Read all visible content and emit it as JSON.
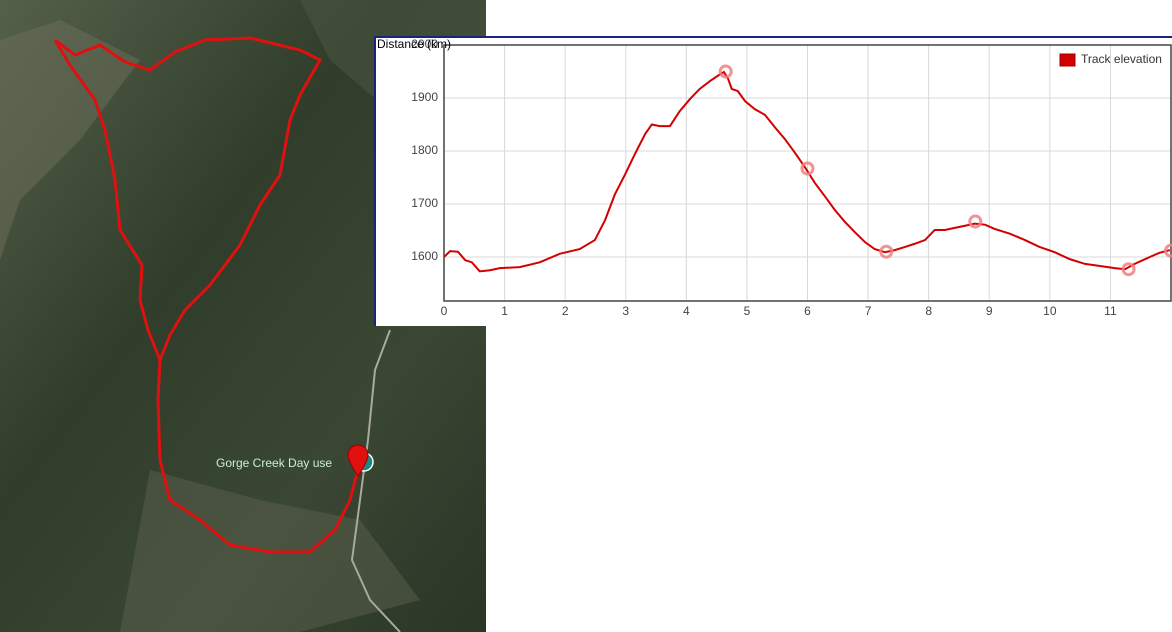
{
  "map": {
    "label": "Gorge Creek Day use"
  },
  "chart_data": {
    "type": "line",
    "title": "Distance (km)",
    "xlim": [
      0,
      12
    ],
    "ylim": [
      1517,
      2000
    ],
    "xticks": [
      0,
      1,
      2,
      3,
      4,
      5,
      6,
      7,
      8,
      9,
      10,
      11
    ],
    "yticks": [
      1600,
      1700,
      1800,
      1900,
      2000
    ],
    "grid": true,
    "legend": "top-right",
    "x": [
      0,
      0.1,
      0.23,
      0.35,
      0.46,
      0.59,
      0.76,
      0.92,
      1.25,
      1.58,
      1.91,
      2.24,
      2.49,
      2.66,
      2.82,
      2.99,
      3.15,
      3.32,
      3.43,
      3.56,
      3.73,
      3.89,
      4.06,
      4.22,
      4.39,
      4.52,
      4.62,
      4.69,
      4.75,
      4.85,
      4.97,
      5.13,
      5.3,
      5.46,
      5.63,
      5.79,
      5.96,
      6.12,
      6.29,
      6.45,
      6.62,
      6.78,
      6.95,
      7.11,
      7.28,
      7.44,
      7.61,
      7.77,
      7.94,
      8.1,
      8.27,
      8.43,
      8.6,
      8.76,
      8.93,
      9.09,
      9.34,
      9.59,
      9.83,
      10.08,
      10.33,
      10.58,
      10.83,
      11.07,
      11.24,
      11.4,
      11.65,
      11.81,
      11.98
    ],
    "series": [
      {
        "name": "Track elevation",
        "color": "#d40000",
        "values": [
          1600,
          1611,
          1610,
          1594,
          1590,
          1573,
          1575,
          1579,
          1581,
          1590,
          1606,
          1615,
          1632,
          1670,
          1718,
          1756,
          1794,
          1832,
          1850,
          1847,
          1847,
          1875,
          1898,
          1917,
          1932,
          1942,
          1949,
          1936,
          1917,
          1913,
          1894,
          1879,
          1868,
          1845,
          1822,
          1797,
          1769,
          1740,
          1714,
          1689,
          1666,
          1647,
          1628,
          1615,
          1609,
          1613,
          1619,
          1625,
          1632,
          1651,
          1651,
          1655,
          1659,
          1663,
          1661,
          1653,
          1644,
          1632,
          1619,
          1609,
          1596,
          1587,
          1583,
          1579,
          1577,
          1587,
          1600,
          1608,
          1613
        ]
      }
    ],
    "highlights": {
      "color": "#f08080",
      "x": [
        4.65,
        6.0,
        7.3,
        8.77,
        11.3,
        12.0
      ],
      "values": [
        1950,
        1767,
        1610,
        1667,
        1577,
        1612
      ]
    }
  }
}
